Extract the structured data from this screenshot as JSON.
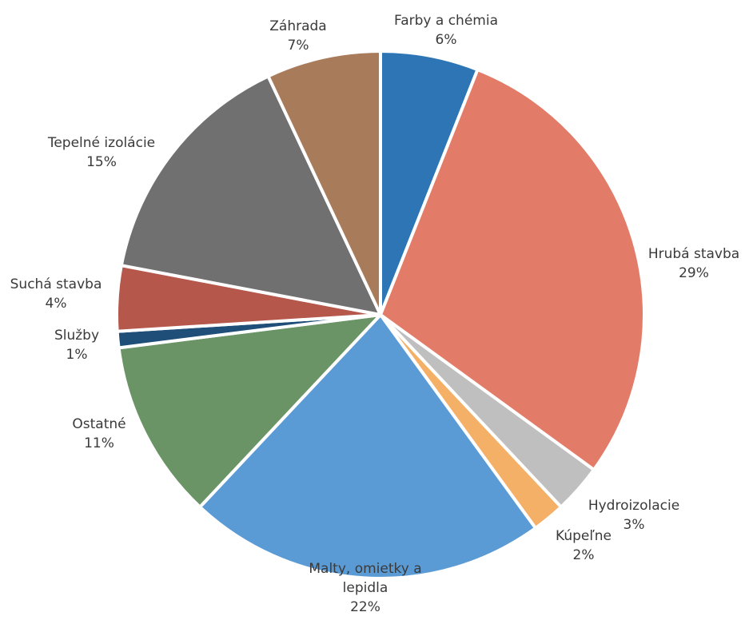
{
  "chart_data": {
    "type": "pie",
    "slices": [
      {
        "label": "Farby a chémia",
        "value": 6,
        "value_label": "6%",
        "color": "#2e75b6"
      },
      {
        "label": "Hrubá stavba",
        "value": 29,
        "value_label": "29%",
        "color": "#e27c69"
      },
      {
        "label": "Hydroizolacie",
        "value": 3,
        "value_label": "3%",
        "color": "#bfbfbf"
      },
      {
        "label": "Kúpeľne",
        "value": 2,
        "value_label": "2%",
        "color": "#f4b066"
      },
      {
        "label": "Malty, omietky a lepidla",
        "value": 22,
        "value_label": "22%",
        "color": "#5b9bd5"
      },
      {
        "label": "Ostatné",
        "value": 11,
        "value_label": "11%",
        "color": "#6a9466"
      },
      {
        "label": "Služby",
        "value": 1,
        "value_label": "1%",
        "color": "#1f4e79"
      },
      {
        "label": "Suchá stavba",
        "value": 4,
        "value_label": "4%",
        "color": "#b5574b"
      },
      {
        "label": "Tepelné izolácie",
        "value": 15,
        "value_label": "15%",
        "color": "#707070"
      },
      {
        "label": "Záhrada",
        "value": 7,
        "value_label": "7%",
        "color": "#a87b5a"
      }
    ],
    "start_angle": "12 o'clock",
    "direction": "clockwise",
    "legend": "none",
    "data_labels": "outside"
  }
}
